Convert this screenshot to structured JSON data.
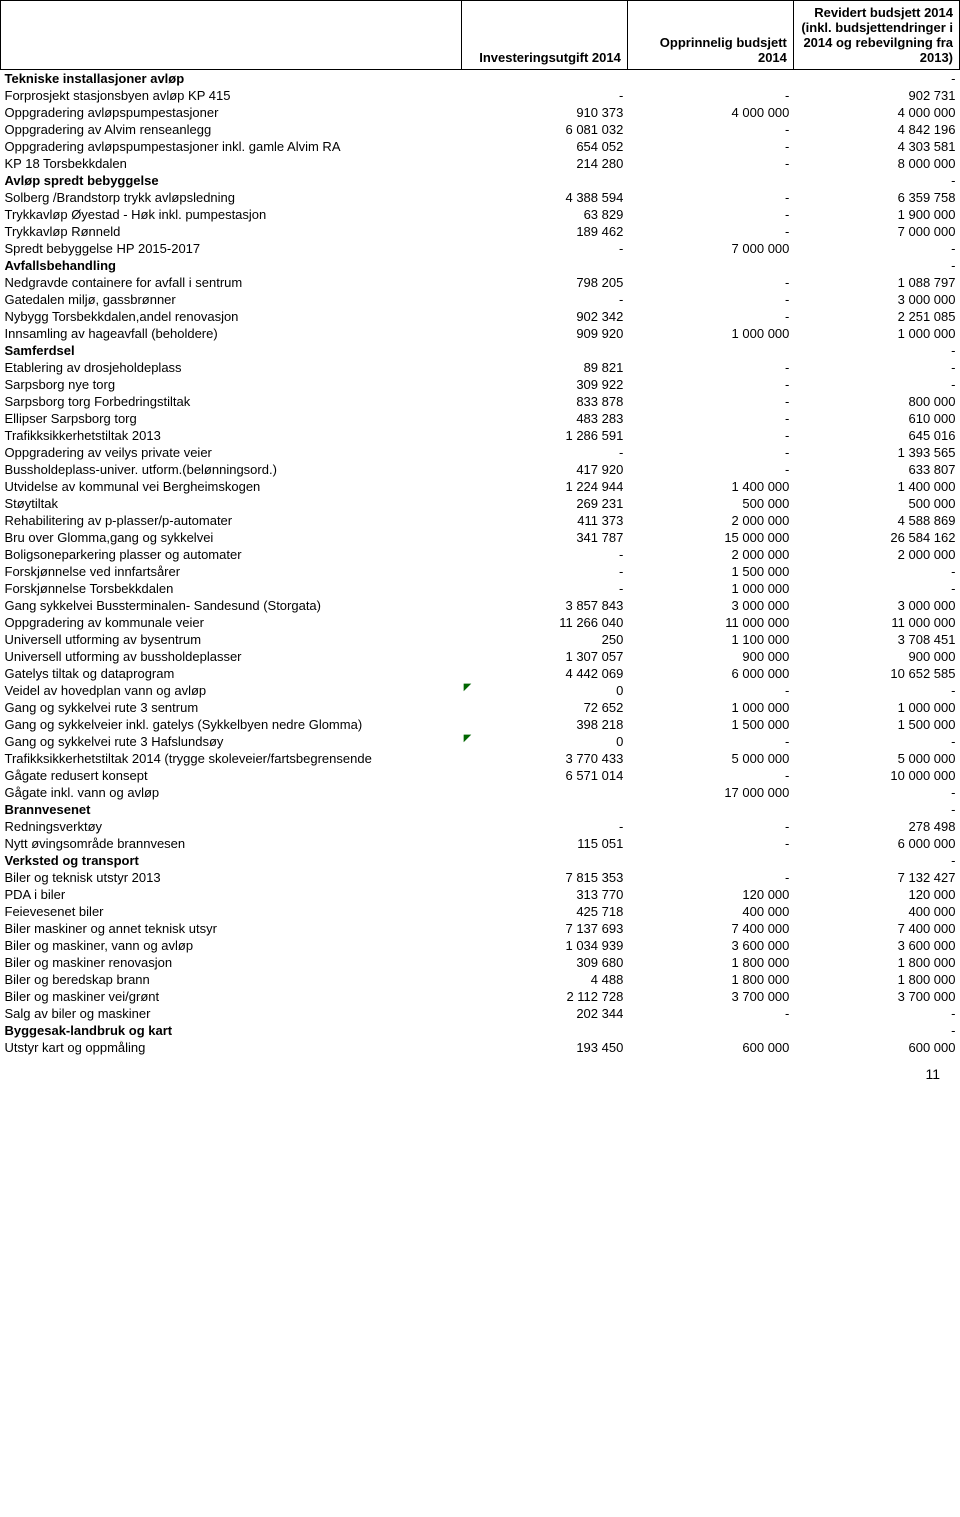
{
  "pageNumber": "11",
  "columns": {
    "c0": "",
    "c1": "Investeringsutgift 2014",
    "c2": "Opprinnelig budsjett 2014",
    "c3": "Revidert budsjett 2014 (inkl. budsjettendringer i 2014 og rebevilgning fra 2013)"
  },
  "rows": [
    {
      "section": true,
      "label": "Tekniske installasjoner avløp",
      "v1": "",
      "v2": "",
      "v3": "-"
    },
    {
      "label": "Forprosjekt stasjonsbyen avløp KP 415",
      "v1": "-",
      "v2": "-",
      "v3": "902 731"
    },
    {
      "label": "Oppgradering avløpspumpestasjoner",
      "v1": "910 373",
      "v2": "4 000 000",
      "v3": "4 000 000"
    },
    {
      "label": "Oppgradering av Alvim renseanlegg",
      "v1": "6 081 032",
      "v2": "-",
      "v3": "4 842 196"
    },
    {
      "label": "Oppgradering avløpspumpestasjoner inkl. gamle Alvim RA",
      "v1": "654 052",
      "v2": "-",
      "v3": "4 303 581"
    },
    {
      "label": "KP 18 Torsbekkdalen",
      "v1": "214 280",
      "v2": "-",
      "v3": "8 000 000"
    },
    {
      "section": true,
      "label": "Avløp spredt bebyggelse",
      "v1": "",
      "v2": "",
      "v3": "-"
    },
    {
      "label": "Solberg /Brandstorp trykk avløpsledning",
      "v1": "4 388 594",
      "v2": "-",
      "v3": "6 359 758"
    },
    {
      "label": "Trykkavløp Øyestad - Høk inkl. pumpestasjon",
      "v1": "63 829",
      "v2": "-",
      "v3": "1 900 000"
    },
    {
      "label": "Trykkavløp Rønneld",
      "v1": "189 462",
      "v2": "-",
      "v3": "7 000 000"
    },
    {
      "label": "Spredt bebyggelse HP 2015-2017",
      "v1": "-",
      "v2": "7 000 000",
      "v3": "-"
    },
    {
      "section": true,
      "label": "Avfallsbehandling",
      "v1": "",
      "v2": "",
      "v3": "-"
    },
    {
      "label": "Nedgravde containere for avfall i sentrum",
      "v1": "798 205",
      "v2": "-",
      "v3": "1 088 797"
    },
    {
      "label": "Gatedalen miljø, gassbrønner",
      "v1": "-",
      "v2": "-",
      "v3": "3 000 000"
    },
    {
      "label": "Nybygg Torsbekkdalen,andel renovasjon",
      "v1": "902 342",
      "v2": "-",
      "v3": "2 251 085"
    },
    {
      "label": "Innsamling av hageavfall (beholdere)",
      "v1": "909 920",
      "v2": "1 000 000",
      "v3": "1 000 000"
    },
    {
      "section": true,
      "label": "Samferdsel",
      "v1": "",
      "v2": "",
      "v3": "-"
    },
    {
      "label": "Etablering av drosjeholdeplass",
      "v1": "89 821",
      "v2": "-",
      "v3": "-"
    },
    {
      "label": "Sarpsborg nye torg",
      "v1": "309 922",
      "v2": "-",
      "v3": "-"
    },
    {
      "label": "Sarpsborg torg Forbedringstiltak",
      "v1": "833 878",
      "v2": "-",
      "v3": "800 000"
    },
    {
      "label": "Ellipser Sarpsborg torg",
      "v1": "483 283",
      "v2": "-",
      "v3": "610 000"
    },
    {
      "label": "Trafikksikkerhetstiltak 2013",
      "v1": "1 286 591",
      "v2": "-",
      "v3": "645 016"
    },
    {
      "label": "Oppgradering av veilys private veier",
      "v1": "-",
      "v2": "-",
      "v3": "1 393 565"
    },
    {
      "label": "Bussholdeplass-univer. utform.(belønningsord.)",
      "v1": "417 920",
      "v2": "-",
      "v3": "633 807"
    },
    {
      "label": "Utvidelse av kommunal vei Bergheimskogen",
      "v1": "1 224 944",
      "v2": "1 400 000",
      "v3": "1 400 000"
    },
    {
      "label": "Støytiltak",
      "v1": "269 231",
      "v2": "500 000",
      "v3": "500 000"
    },
    {
      "label": "Rehabilitering av p-plasser/p-automater",
      "v1": "411 373",
      "v2": "2 000 000",
      "v3": "4 588 869"
    },
    {
      "label": "Bru over Glomma,gang og sykkelvei",
      "v1": "341 787",
      "v2": "15 000 000",
      "v3": "26 584 162"
    },
    {
      "label": "Boligsoneparkering plasser og automater",
      "v1": "-",
      "v2": "2 000 000",
      "v3": "2 000 000"
    },
    {
      "label": "Forskjønnelse ved innfartsårer",
      "v1": "-",
      "v2": "1 500 000",
      "v3": "-"
    },
    {
      "label": "Forskjønnelse Torsbekkdalen",
      "v1": "-",
      "v2": "1 000 000",
      "v3": "-"
    },
    {
      "label": "Gang sykkelvei Bussterminalen- Sandesund (Storgata)",
      "v1": "3 857 843",
      "v2": "3 000 000",
      "v3": "3 000 000"
    },
    {
      "label": "Oppgradering av kommunale veier",
      "v1": "11 266 040",
      "v2": "11 000 000",
      "v3": "11 000 000"
    },
    {
      "label": "Universell utforming av bysentrum",
      "v1": "250",
      "v2": "1 100 000",
      "v3": "3 708 451"
    },
    {
      "label": "Universell utforming av bussholdeplasser",
      "v1": "1 307 057",
      "v2": "900 000",
      "v3": "900 000"
    },
    {
      "label": "Gatelys tiltak og dataprogram",
      "v1": "4 442 069",
      "v2": "6 000 000",
      "v3": "10 652 585"
    },
    {
      "label": "Veidel av hovedplan vann og avløp",
      "v1": "0",
      "marker1": true,
      "v2": "-",
      "v3": "-"
    },
    {
      "label": "Gang og sykkelvei rute 3 sentrum",
      "v1": "72 652",
      "v2": "1 000 000",
      "v3": "1 000 000"
    },
    {
      "label": "Gang og sykkelveier inkl. gatelys (Sykkelbyen nedre Glomma)",
      "v1": "398 218",
      "v2": "1 500 000",
      "v3": "1 500 000"
    },
    {
      "label": "Gang og sykkelvei rute 3 Hafslundsøy",
      "v1": "0",
      "marker1": true,
      "v2": "-",
      "v3": "-"
    },
    {
      "label": "Trafikksikkerhetstiltak 2014 (trygge skoleveier/fartsbegrensende",
      "v1": "3 770 433",
      "v2": "5 000 000",
      "v3": "5 000 000"
    },
    {
      "label": "Gågate redusert konsept",
      "v1": "6 571 014",
      "v2": "-",
      "v3": "10 000 000"
    },
    {
      "label": "Gågate inkl. vann og avløp",
      "v1": "",
      "v2": "17 000 000",
      "v3": "-"
    },
    {
      "section": true,
      "label": "Brannvesenet",
      "v1": "",
      "v2": "",
      "v3": "-"
    },
    {
      "label": "Redningsverktøy",
      "v1": "-",
      "v2": "-",
      "v3": "278 498"
    },
    {
      "label": "Nytt øvingsområde brannvesen",
      "v1": "115 051",
      "v2": "-",
      "v3": "6 000 000"
    },
    {
      "section": true,
      "label": "Verksted og transport",
      "v1": "",
      "v2": "",
      "v3": "-"
    },
    {
      "label": "Biler og teknisk utstyr 2013",
      "v1": "7 815 353",
      "v2": "-",
      "v3": "7 132 427"
    },
    {
      "label": "PDA i biler",
      "v1": "313 770",
      "v2": "120 000",
      "v3": "120 000"
    },
    {
      "label": "Feievesenet biler",
      "v1": "425 718",
      "v2": "400 000",
      "v3": "400 000"
    },
    {
      "label": "Biler maskiner og annet teknisk utsyr",
      "v1": "7 137 693",
      "v2": "7 400 000",
      "v3": "7 400 000"
    },
    {
      "label": "Biler og maskiner, vann og avløp",
      "v1": "1 034 939",
      "v2": "3 600 000",
      "v3": "3 600 000"
    },
    {
      "label": "Biler og maskiner renovasjon",
      "v1": "309 680",
      "v2": "1 800 000",
      "v3": "1 800 000"
    },
    {
      "label": "Biler og beredskap brann",
      "v1": "4 488",
      "v2": "1 800 000",
      "v3": "1 800 000"
    },
    {
      "label": "Biler og maskiner vei/grønt",
      "v1": "2 112 728",
      "v2": "3 700 000",
      "v3": "3 700 000"
    },
    {
      "label": "Salg av biler og maskiner",
      "v1": "202 344",
      "v2": "-",
      "v3": "-"
    },
    {
      "section": true,
      "label": "Byggesak-landbruk og kart",
      "v1": "",
      "v2": "",
      "v3": "-"
    },
    {
      "label": "Utstyr kart og oppmåling",
      "v1": "193 450",
      "v2": "600 000",
      "v3": "600 000"
    }
  ]
}
